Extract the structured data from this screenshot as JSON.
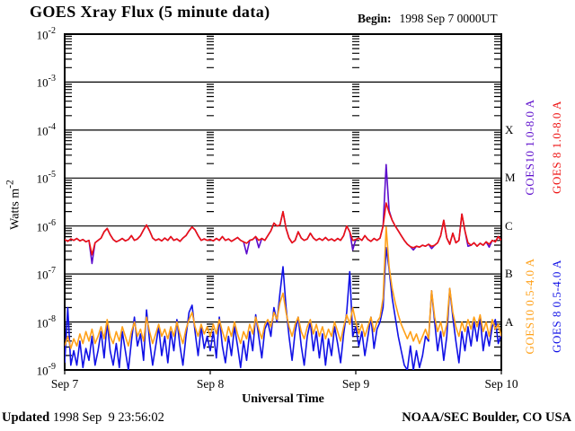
{
  "header": {
    "title": "GOES Xray Flux (5 minute data)",
    "begin_label": "Begin:",
    "begin_value": "1998 Sep 7 0000UT"
  },
  "footer": {
    "updated_label": "Updated",
    "updated_value": " 1998 Sep  9 23:56:02",
    "credit": "NOAA/SEC Boulder, CO USA"
  },
  "axes": {
    "ylabel_text": "Watts m",
    "ylabel_exponent": "-2",
    "xlabel": "Universal Time",
    "x_tick_labels": [
      "Sep 7",
      "Sep 8",
      "Sep 9",
      "Sep 10"
    ],
    "y_tick_exponents": [
      "-2",
      "-3",
      "-4",
      "-5",
      "-6",
      "-7",
      "-8",
      "-9"
    ],
    "flare_classes": [
      {
        "label": "X",
        "log_flux": -4
      },
      {
        "label": "M",
        "log_flux": -5
      },
      {
        "label": "C",
        "log_flux": -6
      },
      {
        "label": "B",
        "log_flux": -7
      },
      {
        "label": "A",
        "log_flux": -8
      }
    ]
  },
  "legend": [
    {
      "label": "GOES10 1.0-8.0 A",
      "color": "#5c0ccc",
      "group": "long",
      "column": "inner"
    },
    {
      "label": "GOES 8 1.0-8.0 A",
      "color": "#ee1111",
      "group": "long",
      "column": "outer"
    },
    {
      "label": "GOES10 0.5-4.0 A",
      "color": "#ffa018",
      "group": "short",
      "column": "inner"
    },
    {
      "label": "GOES 8 0.5-4.0 A",
      "color": "#1111e6",
      "group": "short",
      "column": "outer"
    }
  ],
  "colors": {
    "background": "#ffffff",
    "axis": "#000000",
    "goes10_long": "#5c0ccc",
    "goes8_long": "#ee1111",
    "goes10_short": "#ffa018",
    "goes8_short": "#1111e6"
  },
  "chart_data": {
    "type": "line",
    "title": "GOES Xray Flux (5 minute data)",
    "xlabel": "Universal Time",
    "ylabel": "Watts m-2",
    "y_scale": "log10",
    "ylim_log10": [
      -9,
      -2
    ],
    "x_unit": "hours since 1998 Sep 7 0000UT",
    "xlim_hours": [
      0,
      72
    ],
    "x_day_boundaries_hours": [
      0,
      24,
      48,
      72
    ],
    "grid_decades_log10": [
      -3,
      -4,
      -5,
      -6,
      -7,
      -8
    ],
    "t_start": 0,
    "t_step_hours": 0.5,
    "note": "values are log10 of X-ray flux in W/m^2, estimated from plot; series listed in draw order (later drawn on top)",
    "series": [
      {
        "name": "GOES 8 0.5-4.0 A",
        "color_key": "goes8_short",
        "log10_values": [
          -8.85,
          -7.7,
          -8.9,
          -8.6,
          -8.9,
          -8.4,
          -8.95,
          -8.55,
          -8.8,
          -8.3,
          -8.9,
          -8.6,
          -8.2,
          -8.75,
          -8.0,
          -8.6,
          -8.9,
          -8.45,
          -8.95,
          -8.2,
          -8.6,
          -9.0,
          -8.4,
          -7.9,
          -8.5,
          -8.25,
          -8.8,
          -7.75,
          -8.4,
          -8.9,
          -8.5,
          -8.1,
          -8.7,
          -8.3,
          -8.85,
          -8.2,
          -8.6,
          -7.95,
          -8.5,
          -8.9,
          -8.3,
          -7.8,
          -7.65,
          -8.2,
          -8.7,
          -8.1,
          -8.55,
          -8.3,
          -8.6,
          -8.2,
          -8.75,
          -7.9,
          -8.5,
          -8.85,
          -8.3,
          -8.7,
          -8.1,
          -8.5,
          -8.95,
          -8.4,
          -8.8,
          -8.2,
          -8.6,
          -7.85,
          -8.3,
          -8.75,
          -8.15,
          -8.0,
          -8.3,
          -7.7,
          -8.0,
          -7.4,
          -6.85,
          -7.7,
          -8.3,
          -8.8,
          -8.2,
          -7.9,
          -8.5,
          -8.9,
          -8.3,
          -8.0,
          -8.6,
          -8.2,
          -8.75,
          -8.25,
          -8.9,
          -8.35,
          -8.7,
          -8.1,
          -8.45,
          -8.85,
          -8.25,
          -7.8,
          -6.95,
          -8.3,
          -8.1,
          -8.5,
          -8.2,
          -8.7,
          -8.3,
          -7.9,
          -8.55,
          -8.15,
          -8.0,
          -7.7,
          -6.45,
          -6.9,
          -7.5,
          -7.9,
          -8.3,
          -8.6,
          -8.9,
          -9.0,
          -8.5,
          -9.0,
          -8.6,
          -8.95,
          -8.7,
          -8.3,
          -8.4,
          -7.35,
          -8.0,
          -8.6,
          -8.2,
          -8.8,
          -8.3,
          -7.3,
          -7.9,
          -8.4,
          -8.85,
          -8.2,
          -8.6,
          -8.1,
          -8.5,
          -8.0,
          -8.4,
          -7.9,
          -8.6,
          -8.2,
          -8.5,
          -8.1,
          -7.95,
          -8.45,
          -8.25
        ]
      },
      {
        "name": "GOES10 0.5-4.0 A",
        "color_key": "goes10_short",
        "log10_values": [
          -8.5,
          -8.3,
          -8.55,
          -8.35,
          -8.5,
          -8.25,
          -8.45,
          -8.2,
          -8.4,
          -8.15,
          -8.45,
          -8.3,
          -8.1,
          -8.35,
          -7.95,
          -8.3,
          -8.45,
          -8.2,
          -8.4,
          -8.1,
          -8.3,
          -8.5,
          -8.2,
          -8.0,
          -8.3,
          -8.15,
          -8.4,
          -7.9,
          -8.2,
          -8.45,
          -8.25,
          -8.05,
          -8.3,
          -8.15,
          -8.35,
          -8.1,
          -8.3,
          -8.0,
          -8.25,
          -8.45,
          -8.15,
          -7.95,
          -7.8,
          -8.1,
          -8.3,
          -8.05,
          -8.25,
          -8.1,
          -8.3,
          -8.05,
          -8.25,
          -7.95,
          -8.2,
          -8.4,
          -8.1,
          -8.3,
          -8.0,
          -8.25,
          -8.45,
          -8.2,
          -8.35,
          -8.05,
          -8.25,
          -7.9,
          -8.15,
          -8.35,
          -8.05,
          -7.95,
          -8.1,
          -7.8,
          -7.95,
          -7.6,
          -7.4,
          -7.8,
          -8.1,
          -8.3,
          -8.05,
          -7.9,
          -8.2,
          -8.35,
          -8.1,
          -7.95,
          -8.25,
          -8.05,
          -8.3,
          -8.1,
          -8.35,
          -8.15,
          -8.3,
          -8.0,
          -8.2,
          -8.4,
          -8.1,
          -7.85,
          -8.05,
          -7.7,
          -8.0,
          -8.25,
          -8.05,
          -8.3,
          -8.1,
          -7.9,
          -8.2,
          -8.0,
          -7.9,
          -7.5,
          -6.02,
          -6.85,
          -7.3,
          -7.6,
          -7.85,
          -8.05,
          -8.2,
          -8.35,
          -8.2,
          -8.4,
          -8.25,
          -8.45,
          -8.3,
          -8.15,
          -8.35,
          -7.35,
          -7.9,
          -8.2,
          -8.0,
          -8.3,
          -8.05,
          -7.3,
          -7.8,
          -8.1,
          -8.3,
          -8.0,
          -8.2,
          -7.95,
          -8.15,
          -7.9,
          -8.1,
          -7.85,
          -8.2,
          -8.0,
          -8.3,
          -7.95,
          -8.15,
          -8.05,
          -8.3
        ]
      },
      {
        "name": "GOES10 1.0-8.0 A",
        "color_key": "goes10_long",
        "log10_values": [
          -6.28,
          -6.32,
          -6.27,
          -6.3,
          -6.26,
          -6.31,
          -6.28,
          -6.33,
          -6.3,
          -6.78,
          -6.35,
          -6.3,
          -6.25,
          -6.12,
          -6.05,
          -6.18,
          -6.28,
          -6.33,
          -6.3,
          -6.26,
          -6.31,
          -6.28,
          -6.2,
          -6.3,
          -6.27,
          -6.2,
          -6.08,
          -5.98,
          -6.1,
          -6.25,
          -6.3,
          -6.27,
          -6.31,
          -6.25,
          -6.3,
          -6.22,
          -6.3,
          -6.27,
          -6.32,
          -6.25,
          -6.2,
          -6.1,
          -6.02,
          -6.08,
          -6.2,
          -6.3,
          -6.27,
          -6.3,
          -6.28,
          -6.31,
          -6.26,
          -6.3,
          -6.22,
          -6.3,
          -6.27,
          -6.32,
          -6.28,
          -6.24,
          -6.3,
          -6.33,
          -6.58,
          -6.3,
          -6.28,
          -6.22,
          -6.45,
          -6.26,
          -6.3,
          -6.2,
          -6.1,
          -5.94,
          -6.0,
          -5.98,
          -5.7,
          -6.05,
          -6.25,
          -6.35,
          -6.3,
          -6.12,
          -6.25,
          -6.3,
          -6.27,
          -6.15,
          -6.25,
          -6.3,
          -6.26,
          -6.3,
          -6.24,
          -6.3,
          -6.27,
          -6.31,
          -6.26,
          -6.3,
          -6.2,
          -6.0,
          -6.12,
          -6.5,
          -6.28,
          -6.25,
          -6.3,
          -6.2,
          -6.28,
          -6.32,
          -6.26,
          -6.3,
          -6.25,
          -6.0,
          -4.72,
          -5.68,
          -5.88,
          -6.0,
          -6.1,
          -6.2,
          -6.3,
          -6.38,
          -6.43,
          -6.5,
          -6.42,
          -6.44,
          -6.4,
          -6.42,
          -6.38,
          -6.47,
          -6.4,
          -6.35,
          -6.2,
          -5.88,
          -6.25,
          -6.38,
          -6.15,
          -6.35,
          -6.3,
          -5.75,
          -6.1,
          -6.42,
          -6.4,
          -6.35,
          -6.42,
          -6.36,
          -6.4,
          -6.33,
          -6.44,
          -6.3,
          -6.33,
          -6.22,
          -6.3
        ]
      },
      {
        "name": "GOES 8 1.0-8.0 A",
        "color_key": "goes8_long",
        "log10_values": [
          -6.28,
          -6.32,
          -6.27,
          -6.3,
          -6.26,
          -6.31,
          -6.28,
          -6.33,
          -6.3,
          -6.6,
          -6.35,
          -6.3,
          -6.25,
          -6.12,
          -6.05,
          -6.18,
          -6.28,
          -6.33,
          -6.3,
          -6.26,
          -6.31,
          -6.28,
          -6.2,
          -6.3,
          -6.27,
          -6.2,
          -6.08,
          -5.98,
          -6.1,
          -6.25,
          -6.3,
          -6.27,
          -6.31,
          -6.25,
          -6.3,
          -6.22,
          -6.3,
          -6.27,
          -6.32,
          -6.25,
          -6.2,
          -6.1,
          -6.02,
          -6.08,
          -6.2,
          -6.3,
          -6.27,
          -6.3,
          -6.28,
          -6.31,
          -6.26,
          -6.3,
          -6.22,
          -6.3,
          -6.27,
          -6.32,
          -6.28,
          -6.24,
          -6.3,
          -6.33,
          -6.36,
          -6.3,
          -6.28,
          -6.22,
          -6.3,
          -6.26,
          -6.3,
          -6.2,
          -6.1,
          -5.94,
          -6.0,
          -5.98,
          -5.7,
          -6.05,
          -6.25,
          -6.35,
          -6.3,
          -6.12,
          -6.25,
          -6.3,
          -6.27,
          -6.15,
          -6.25,
          -6.3,
          -6.26,
          -6.3,
          -6.24,
          -6.3,
          -6.27,
          -6.31,
          -6.26,
          -6.3,
          -6.2,
          -6.0,
          -6.12,
          -6.3,
          -6.28,
          -6.25,
          -6.3,
          -6.2,
          -6.28,
          -6.32,
          -6.26,
          -6.3,
          -6.25,
          -6.0,
          -5.52,
          -5.72,
          -5.88,
          -6.0,
          -6.1,
          -6.2,
          -6.3,
          -6.38,
          -6.43,
          -6.45,
          -6.42,
          -6.44,
          -6.4,
          -6.42,
          -6.38,
          -6.42,
          -6.4,
          -6.35,
          -6.2,
          -5.88,
          -6.25,
          -6.38,
          -6.15,
          -6.35,
          -6.3,
          -5.75,
          -6.1,
          -6.35,
          -6.4,
          -6.35,
          -6.42,
          -6.36,
          -6.4,
          -6.33,
          -6.38,
          -6.3,
          -6.33,
          -6.22,
          -6.3
        ]
      }
    ]
  }
}
